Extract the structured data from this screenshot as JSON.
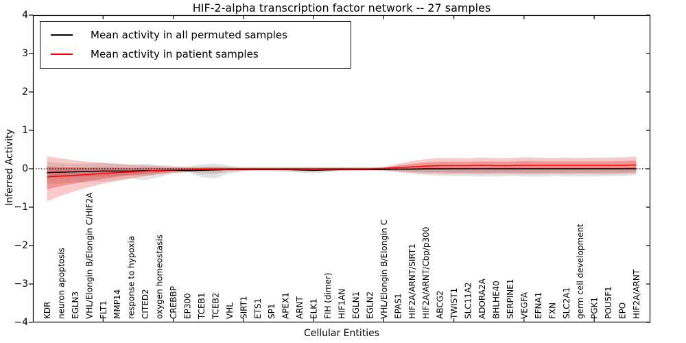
{
  "chart_data": {
    "type": "line",
    "title": "HIF-2-alpha transcription factor network -- 27 samples",
    "xlabel": "Cellular Entities",
    "ylabel": "Inferred Activity",
    "ylim": [
      -4,
      4
    ],
    "ytick_values": [
      4,
      3,
      2,
      1,
      0,
      -1,
      -2,
      -3,
      -4
    ],
    "ytick_labels": [
      "4",
      "3",
      "2",
      "1",
      "0",
      "−1",
      "−2",
      "−3",
      "−4"
    ],
    "xtick_major_indices": [
      4,
      9,
      14,
      19,
      24,
      29,
      34,
      39
    ],
    "grid": false,
    "legend_position": "upper left",
    "zero_reference_line": "black dotted line at y=0",
    "categories": [
      "KDR",
      "neuron apoptosis",
      "EGLN3",
      "VHL/Elongin B/Elongin C/HIF2A",
      "FLT1",
      "MMP14",
      "response to hypoxia",
      "CITED2",
      "oxygen homeostasis",
      "CREBBP",
      "EP300",
      "TCEB1",
      "TCEB2",
      "VHL",
      "SIRT1",
      "ETS1",
      "SP1",
      "APEX1",
      "ARNT",
      "ELK1",
      "FIH (dimer)",
      "HIF1AN",
      "EGLN1",
      "EGLN2",
      "VHL/Elongin B/Elongin C",
      "EPAS1",
      "HIF2A/ARNT/SIRT1",
      "HIF2A/ARNT/Cbp/p300",
      "ABCG2",
      "TWIST1",
      "SLC11A2",
      "ADORA2A",
      "BHLHE40",
      "SERPINE1",
      "VEGFA",
      "EFNA1",
      "FXN",
      "SLC2A1",
      "germ cell development",
      "PGK1",
      "POU5F1",
      "EPO",
      "HIF2A/ARNT"
    ],
    "series": [
      {
        "name": "Mean activity in all permuted samples",
        "color": "#000000",
        "values": [
          -0.1,
          -0.09,
          -0.08,
          -0.07,
          -0.06,
          -0.06,
          -0.06,
          -0.05,
          -0.05,
          -0.04,
          -0.05,
          -0.04,
          -0.03,
          -0.02,
          -0.02,
          -0.02,
          -0.02,
          -0.02,
          -0.03,
          -0.04,
          -0.03,
          -0.02,
          -0.02,
          -0.02,
          -0.02,
          -0.01,
          -0.01,
          0.0,
          0.0,
          0.0,
          0.0,
          0.0,
          0.0,
          0.0,
          0.0,
          0.0,
          0.0,
          0.0,
          0.0,
          0.0,
          0.0,
          0.0,
          0.0
        ]
      },
      {
        "name": "Mean activity in patient samples",
        "color": "#ff0000",
        "values": [
          -0.21,
          -0.19,
          -0.17,
          -0.15,
          -0.12,
          -0.1,
          -0.08,
          -0.06,
          -0.04,
          -0.03,
          -0.02,
          -0.01,
          -0.01,
          0.0,
          0.0,
          0.0,
          0.0,
          0.0,
          0.0,
          0.0,
          0.0,
          0.0,
          0.0,
          0.0,
          0.01,
          0.03,
          0.05,
          0.07,
          0.08,
          0.08,
          0.08,
          0.09,
          0.08,
          0.08,
          0.09,
          0.09,
          0.09,
          0.09,
          0.09,
          0.09,
          0.09,
          0.09,
          0.1
        ]
      }
    ],
    "bands": [
      {
        "name": "permuted-samples-range-outer",
        "color": "#a0a0a0",
        "opacity": 0.3,
        "upper": [
          0.18,
          0.15,
          0.13,
          0.14,
          0.16,
          0.13,
          0.1,
          0.13,
          0.1,
          0.06,
          0.05,
          0.11,
          0.14,
          0.08,
          0.04,
          0.04,
          0.04,
          0.04,
          0.05,
          0.05,
          0.04,
          0.04,
          0.03,
          0.03,
          0.03,
          0.04,
          0.04,
          0.05,
          0.05,
          0.04,
          0.04,
          0.04,
          0.04,
          0.04,
          0.04,
          0.04,
          0.04,
          0.04,
          0.04,
          0.04,
          0.04,
          0.04,
          0.05
        ],
        "lower": [
          -0.4,
          -0.38,
          -0.35,
          -0.33,
          -0.34,
          -0.3,
          -0.25,
          -0.3,
          -0.22,
          -0.12,
          -0.08,
          -0.22,
          -0.25,
          -0.12,
          -0.07,
          -0.06,
          -0.06,
          -0.08,
          -0.1,
          -0.12,
          -0.09,
          -0.07,
          -0.06,
          -0.05,
          -0.06,
          -0.09,
          -0.13,
          -0.16,
          -0.18,
          -0.19,
          -0.19,
          -0.2,
          -0.2,
          -0.19,
          -0.2,
          -0.21,
          -0.19,
          -0.2,
          -0.2,
          -0.2,
          -0.19,
          -0.19,
          -0.16
        ]
      },
      {
        "name": "permuted-samples-range-inner",
        "color": "#909090",
        "opacity": 0.35,
        "upper": [
          0.04,
          0.03,
          0.03,
          0.04,
          0.05,
          0.04,
          0.02,
          0.04,
          0.03,
          0.01,
          0.0,
          0.04,
          0.06,
          0.03,
          0.01,
          0.01,
          0.01,
          0.01,
          0.01,
          0.01,
          0.01,
          0.01,
          0.01,
          0.01,
          0.01,
          0.02,
          0.02,
          0.03,
          0.03,
          0.02,
          0.02,
          0.02,
          0.02,
          0.02,
          0.02,
          0.02,
          0.02,
          0.02,
          0.02,
          0.02,
          0.02,
          0.02,
          0.03
        ],
        "lower": [
          -0.25,
          -0.24,
          -0.22,
          -0.2,
          -0.2,
          -0.18,
          -0.16,
          -0.18,
          -0.14,
          -0.08,
          -0.07,
          -0.13,
          -0.14,
          -0.07,
          -0.05,
          -0.04,
          -0.04,
          -0.05,
          -0.07,
          -0.08,
          -0.06,
          -0.05,
          -0.04,
          -0.04,
          -0.04,
          -0.05,
          -0.07,
          -0.08,
          -0.09,
          -0.1,
          -0.1,
          -0.1,
          -0.1,
          -0.1,
          -0.1,
          -0.11,
          -0.1,
          -0.1,
          -0.1,
          -0.1,
          -0.1,
          -0.1,
          -0.08
        ]
      },
      {
        "name": "patient-samples-range-outer",
        "color": "#e84040",
        "opacity": 0.28,
        "upper": [
          0.33,
          0.27,
          0.22,
          0.18,
          0.15,
          0.13,
          0.11,
          0.09,
          0.07,
          0.06,
          0.05,
          0.04,
          0.04,
          0.03,
          0.03,
          0.03,
          0.03,
          0.03,
          0.03,
          0.03,
          0.03,
          0.03,
          0.03,
          0.03,
          0.04,
          0.13,
          0.2,
          0.25,
          0.28,
          0.28,
          0.27,
          0.29,
          0.28,
          0.28,
          0.3,
          0.29,
          0.28,
          0.29,
          0.28,
          0.29,
          0.29,
          0.3,
          0.32
        ],
        "lower": [
          -0.85,
          -0.7,
          -0.58,
          -0.48,
          -0.39,
          -0.32,
          -0.25,
          -0.19,
          -0.14,
          -0.11,
          -0.08,
          -0.07,
          -0.06,
          -0.05,
          -0.05,
          -0.04,
          -0.04,
          -0.04,
          -0.04,
          -0.04,
          -0.04,
          -0.04,
          -0.04,
          -0.04,
          -0.04,
          -0.08,
          -0.1,
          -0.12,
          -0.13,
          -0.13,
          -0.13,
          -0.14,
          -0.13,
          -0.13,
          -0.14,
          -0.14,
          -0.13,
          -0.14,
          -0.13,
          -0.14,
          -0.14,
          -0.13,
          -0.12
        ]
      },
      {
        "name": "patient-samples-range-inner",
        "color": "#e03030",
        "opacity": 0.35,
        "upper": [
          0.06,
          0.04,
          0.03,
          0.02,
          0.02,
          0.02,
          0.02,
          0.02,
          0.02,
          0.02,
          0.02,
          0.02,
          0.02,
          0.02,
          0.02,
          0.02,
          0.02,
          0.02,
          0.02,
          0.02,
          0.02,
          0.02,
          0.02,
          0.02,
          0.03,
          0.08,
          0.13,
          0.16,
          0.18,
          0.18,
          0.18,
          0.19,
          0.18,
          0.18,
          0.2,
          0.19,
          0.19,
          0.19,
          0.19,
          0.19,
          0.19,
          0.2,
          0.21
        ],
        "lower": [
          -0.53,
          -0.45,
          -0.38,
          -0.32,
          -0.26,
          -0.21,
          -0.17,
          -0.13,
          -0.09,
          -0.07,
          -0.05,
          -0.04,
          -0.04,
          -0.03,
          -0.03,
          -0.02,
          -0.02,
          -0.02,
          -0.02,
          -0.02,
          -0.02,
          -0.02,
          -0.02,
          -0.02,
          -0.02,
          -0.03,
          -0.03,
          -0.03,
          -0.03,
          -0.02,
          -0.02,
          -0.02,
          -0.02,
          -0.02,
          -0.02,
          -0.02,
          -0.02,
          -0.02,
          -0.02,
          -0.02,
          -0.02,
          -0.02,
          -0.01
        ]
      }
    ]
  },
  "legend": {
    "items": [
      {
        "label": "Mean activity in all permuted samples",
        "color": "#000000"
      },
      {
        "label": "Mean activity in patient samples",
        "color": "#ff0000"
      }
    ]
  },
  "colors": {
    "background": "#ffffff",
    "axis": "#000000",
    "permuted_line": "#000000",
    "patient_line": "#ff0000",
    "permuted_band": "#d9d9d9",
    "patient_band": "#f6bcbc"
  }
}
